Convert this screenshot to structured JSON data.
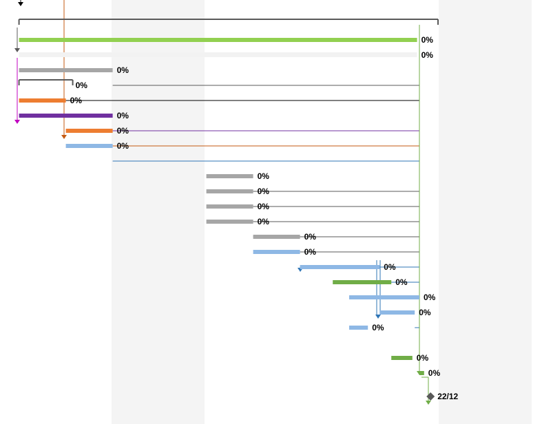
{
  "colors": {
    "green": "#92d050",
    "dark_green": "#70ad47",
    "gray": "#a6a6a6",
    "orange": "#ed7d31",
    "purple": "#7030a0",
    "light_blue": "#8eb8e5",
    "blue_line": "#2e75b6",
    "summary": "#595959",
    "milestone": "#595959",
    "shade": "#f4f4f4",
    "row_band": "#f2f2f2",
    "magenta_line": "#c000c0",
    "orange_line": "#c55a11",
    "purple_line": "#7030a0"
  },
  "bars": [
    {
      "row": 0,
      "start": 2,
      "end": 90,
      "type": "summary",
      "color": "summary",
      "label": ""
    },
    {
      "row": 1,
      "start": 2,
      "end": 87,
      "type": "task",
      "color": "green",
      "label": "0%"
    },
    {
      "row": 2,
      "start": 2,
      "end": 87,
      "type": "band",
      "color": "row_band",
      "label": "0%"
    },
    {
      "row": 3,
      "start": 2,
      "end": 22,
      "type": "task",
      "color": "gray",
      "label": "0%"
    },
    {
      "row": 4,
      "start": 2,
      "end": 12,
      "type": "summary",
      "color": "summary",
      "label": "0%"
    },
    {
      "row": 5,
      "start": 2,
      "end": 12,
      "type": "task",
      "color": "orange",
      "label": "0%"
    },
    {
      "row": 6,
      "start": 2,
      "end": 22,
      "type": "task",
      "color": "purple",
      "label": "0%"
    },
    {
      "row": 7,
      "start": 12,
      "end": 22,
      "type": "task",
      "color": "orange",
      "label": "0%"
    },
    {
      "row": 8,
      "start": 12,
      "end": 22,
      "type": "task",
      "color": "light_blue",
      "label": "0%"
    },
    {
      "row": 10,
      "start": 42,
      "end": 52,
      "type": "task",
      "color": "gray",
      "label": "0%"
    },
    {
      "row": 11,
      "start": 42,
      "end": 52,
      "type": "task",
      "color": "gray",
      "label": "0%"
    },
    {
      "row": 12,
      "start": 42,
      "end": 52,
      "type": "task",
      "color": "gray",
      "label": "0%"
    },
    {
      "row": 13,
      "start": 42,
      "end": 52,
      "type": "task",
      "color": "gray",
      "label": "0%"
    },
    {
      "row": 14,
      "start": 52,
      "end": 62,
      "type": "task",
      "color": "gray",
      "label": "0%"
    },
    {
      "row": 15,
      "start": 52,
      "end": 62,
      "type": "task",
      "color": "light_blue",
      "label": "0%"
    },
    {
      "row": 16,
      "start": 62,
      "end": 79,
      "type": "task",
      "color": "light_blue",
      "label": "0%"
    },
    {
      "row": 17,
      "start": 69,
      "end": 81.5,
      "type": "task",
      "color": "dark_green",
      "label": "0%"
    },
    {
      "row": 18,
      "start": 72.5,
      "end": 87.5,
      "type": "task",
      "color": "light_blue",
      "label": "0%"
    },
    {
      "row": 19,
      "start": 79,
      "end": 86.5,
      "type": "task",
      "color": "light_blue",
      "label": "0%"
    },
    {
      "row": 20,
      "start": 72.5,
      "end": 76.5,
      "type": "task",
      "color": "light_blue",
      "label": "0%"
    },
    {
      "row": 22,
      "start": 81.5,
      "end": 86,
      "type": "task",
      "color": "dark_green",
      "label": "0%"
    },
    {
      "row": 23,
      "start": 87.5,
      "end": 88.5,
      "type": "task",
      "color": "dark_green",
      "label": "0%"
    },
    {
      "row": 24,
      "start": 89,
      "end": 89,
      "type": "milestone",
      "color": "milestone",
      "label": "22/12"
    }
  ]
}
